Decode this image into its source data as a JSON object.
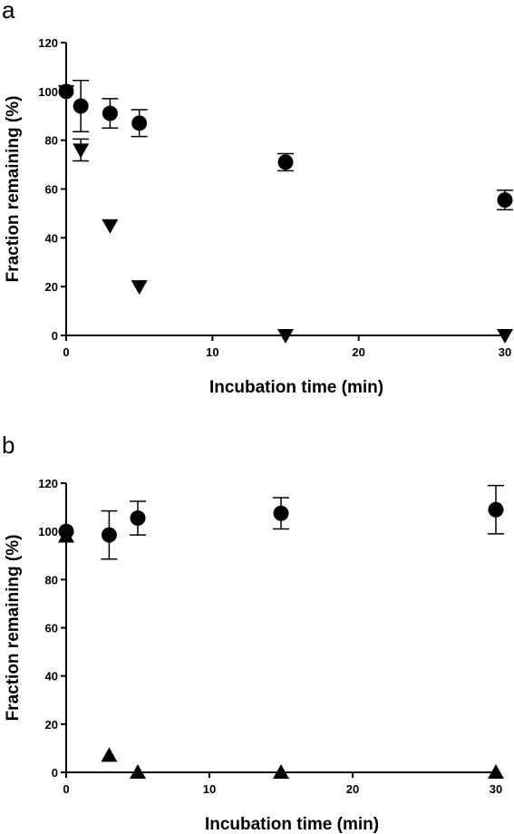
{
  "chart_data": [
    {
      "panel": "a",
      "type": "scatter",
      "xlabel": "Incubation time (min)",
      "ylabel": "Fraction remaining (%)",
      "xlim": [
        0,
        30
      ],
      "ylim": [
        0,
        120
      ],
      "x_ticks": [
        0,
        10,
        20,
        30
      ],
      "y_ticks": [
        0,
        20,
        40,
        60,
        80,
        100,
        120
      ],
      "series": [
        {
          "marker": "circle",
          "points": [
            {
              "x": 0,
              "y": 100,
              "err": 0
            },
            {
              "x": 1,
              "y": 94,
              "err": 10.5
            },
            {
              "x": 3,
              "y": 91,
              "err": 6
            },
            {
              "x": 5,
              "y": 87,
              "err": 5.5
            },
            {
              "x": 15,
              "y": 71,
              "err": 3.5
            },
            {
              "x": 30,
              "y": 55.5,
              "err": 4
            }
          ]
        },
        {
          "marker": "triangle-down",
          "points": [
            {
              "x": 0,
              "y": 100,
              "err": 0
            },
            {
              "x": 1,
              "y": 76,
              "err": 4.5
            },
            {
              "x": 3,
              "y": 45,
              "err": 0
            },
            {
              "x": 5,
              "y": 20,
              "err": 0
            },
            {
              "x": 15,
              "y": 0,
              "err": 0
            },
            {
              "x": 30,
              "y": 0,
              "err": 0
            }
          ]
        }
      ]
    },
    {
      "panel": "b",
      "type": "scatter",
      "xlabel": "Incubation time (min)",
      "ylabel": "Fraction remaining (%)",
      "xlim": [
        0,
        30
      ],
      "ylim": [
        0,
        120
      ],
      "x_ticks": [
        0,
        10,
        20,
        30
      ],
      "y_ticks": [
        0,
        20,
        40,
        60,
        80,
        100,
        120
      ],
      "series": [
        {
          "marker": "circle",
          "points": [
            {
              "x": 0,
              "y": 100,
              "err": 0
            },
            {
              "x": 3,
              "y": 98.5,
              "err": 10
            },
            {
              "x": 5,
              "y": 105.5,
              "err": 7
            },
            {
              "x": 15,
              "y": 107.5,
              "err": 6.5
            },
            {
              "x": 30,
              "y": 109,
              "err": 10
            }
          ]
        },
        {
          "marker": "triangle-up",
          "points": [
            {
              "x": 0,
              "y": 98,
              "err": 0
            },
            {
              "x": 3,
              "y": 7,
              "err": 0
            },
            {
              "x": 5,
              "y": 0,
              "err": 0
            },
            {
              "x": 15,
              "y": 0,
              "err": 0
            },
            {
              "x": 30,
              "y": 0,
              "err": 0
            }
          ]
        }
      ]
    }
  ]
}
